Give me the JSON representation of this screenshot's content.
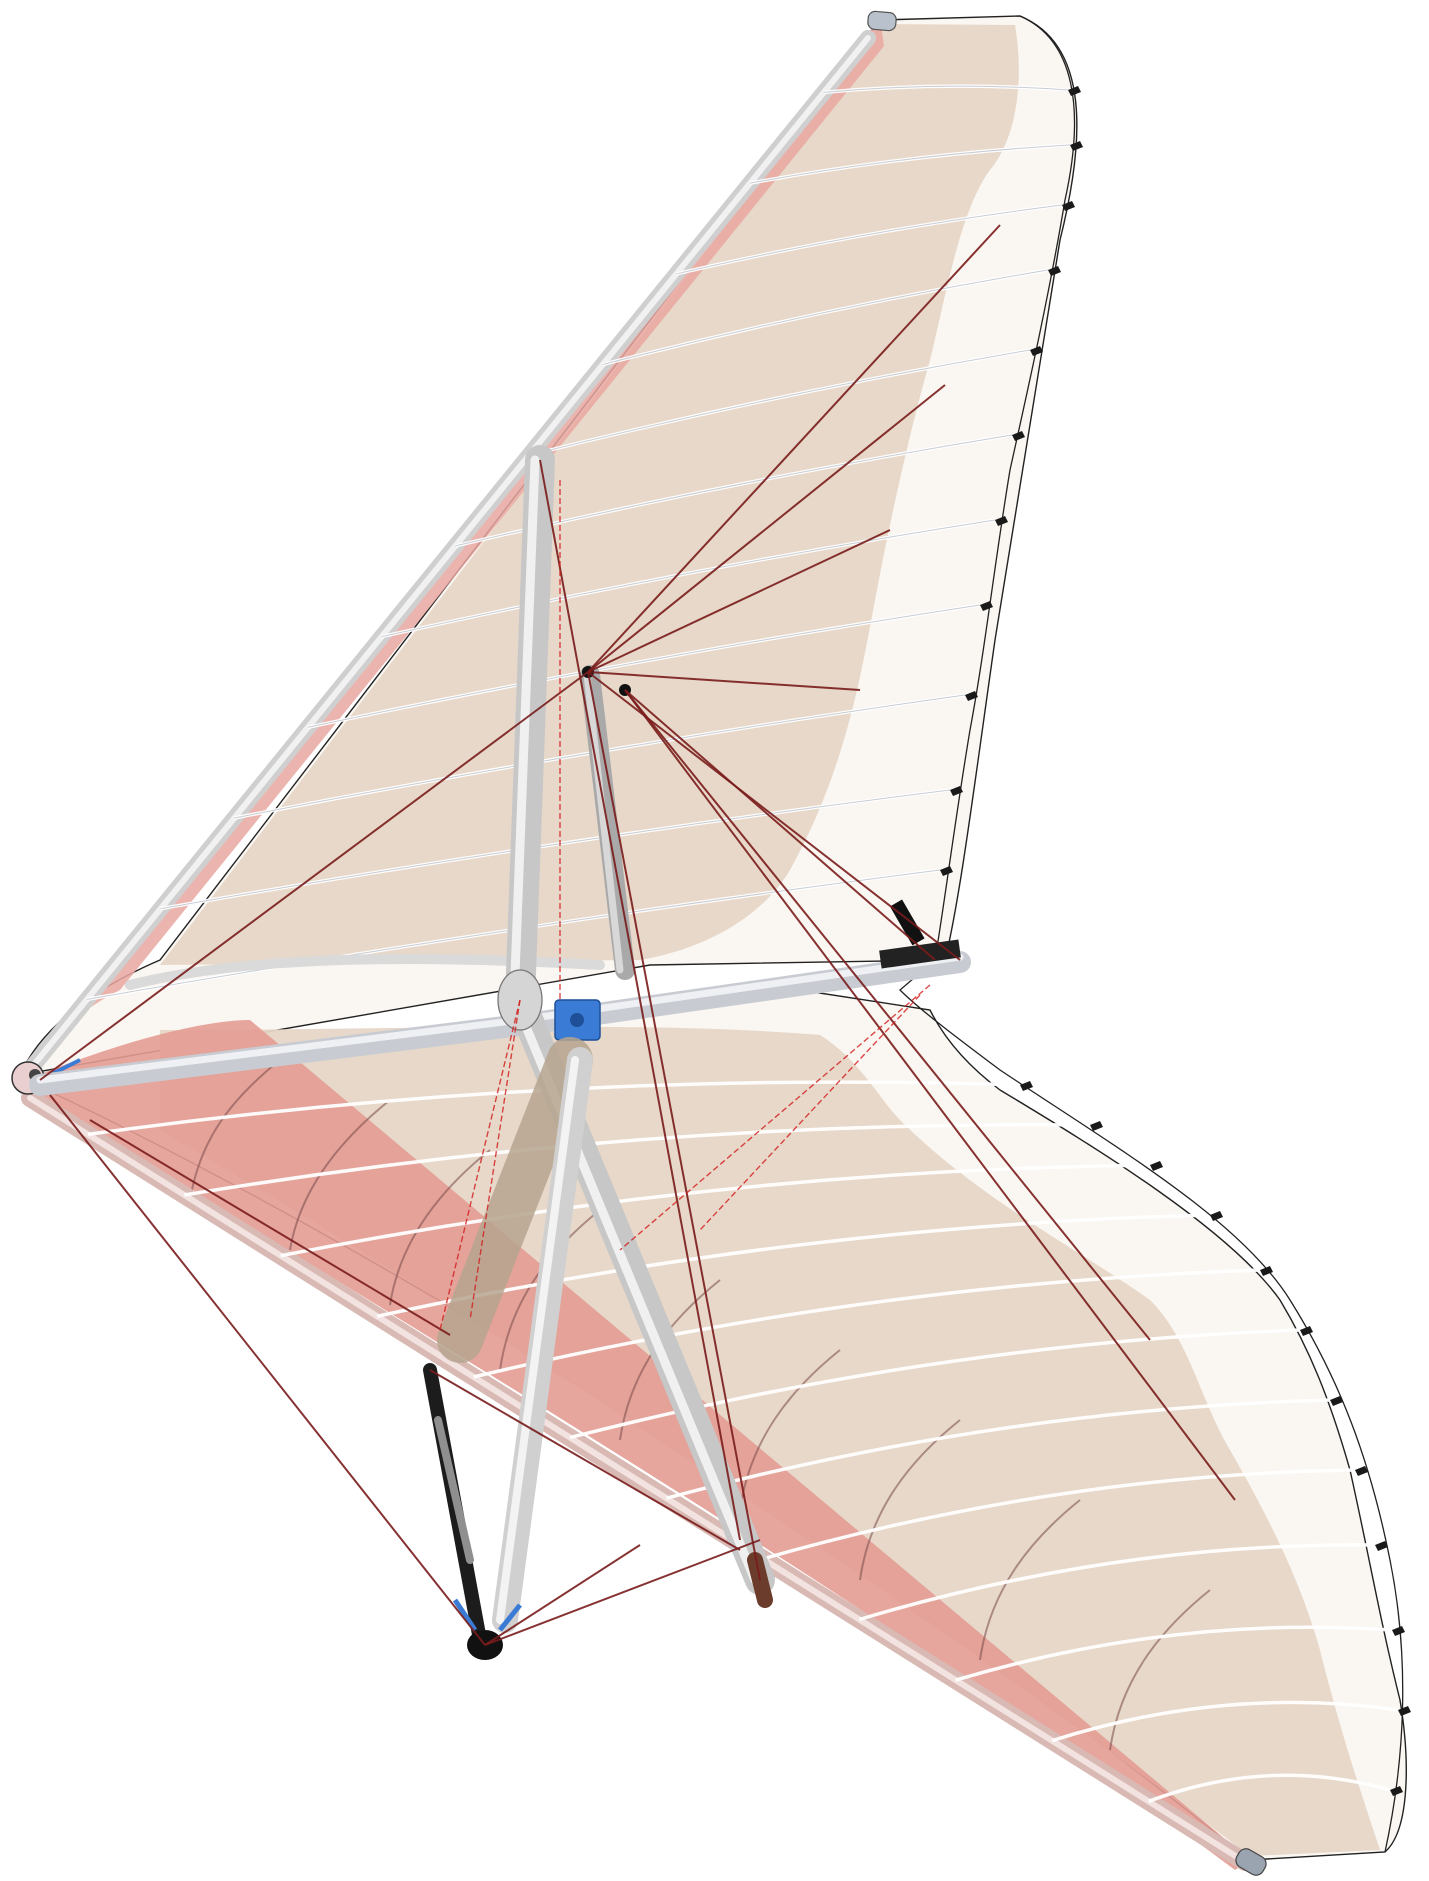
{
  "image": {
    "subject": "hang-glider-cad-render",
    "background": "#ffffff"
  },
  "colors": {
    "sail_tan": "#e6d6c6",
    "leading_edge_red": "#e9a7a0",
    "tube_grey": "#d8d8d8",
    "tube_edge": "#8f8f8f",
    "batten_white": "#f3f3f3",
    "cable_red": "#8a1f1f",
    "cable_bright_red": "#d21c1c",
    "fitting_blue": "#3a7bd5",
    "fitting_black": "#1a1a1a"
  },
  "icons": {
    "nose": "nose-cap-icon",
    "tip_upper": "wingtip-cap-icon",
    "tip_lower": "wingtip-cap-icon",
    "control_bar_corner": "control-bar-wheel-icon",
    "keel_hang_point": "hang-bracket-icon"
  }
}
